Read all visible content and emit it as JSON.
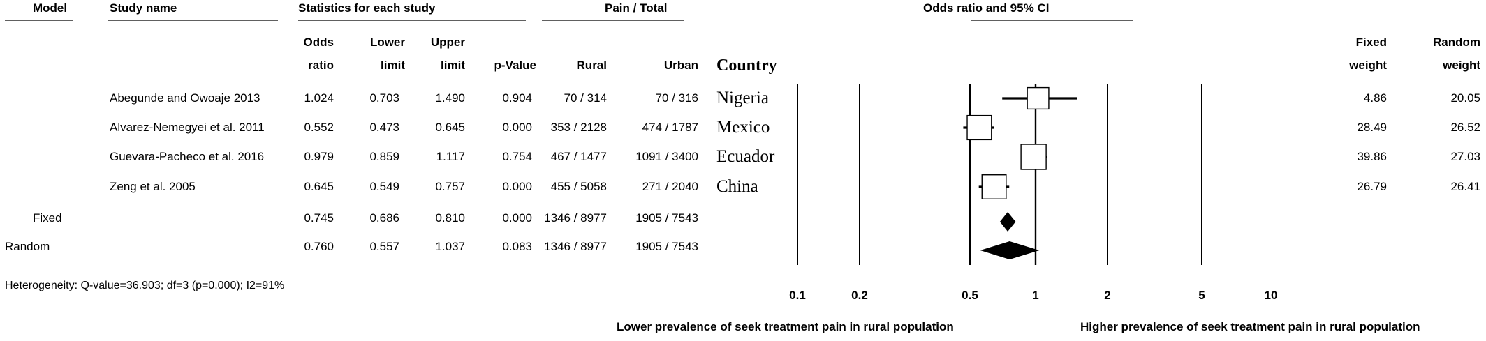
{
  "headers": {
    "model": "Model",
    "study": "Study name",
    "stats_group": "Statistics for each study",
    "pain_group": "Pain / Total",
    "or_group": "Odds ratio and 95% CI",
    "odds_line1": "Odds",
    "odds_line2": "ratio",
    "lower_line1": "Lower",
    "lower_line2": "limit",
    "upper_line1": "Upper",
    "upper_line2": "limit",
    "pvalue": "p-Value",
    "rural": "Rural",
    "urban": "Urban",
    "country": "Country",
    "fixed_w_line1": "Fixed",
    "fixed_w_line2": "weight",
    "random_w_line1": "Random",
    "random_w_line2": "weight"
  },
  "studies": [
    {
      "name": "Abegunde and Owoaje 2013",
      "odds": "1.024",
      "lower": "0.703",
      "upper": "1.490",
      "p": "0.904",
      "rural": "70 / 314",
      "urban": "70 / 316",
      "country": "Nigeria",
      "fixed_w": "4.86",
      "random_w": "20.05"
    },
    {
      "name": "Alvarez-Nemegyei et al. 2011",
      "odds": "0.552",
      "lower": "0.473",
      "upper": "0.645",
      "p": "0.000",
      "rural": "353 / 2128",
      "urban": "474 / 1787",
      "country": "Mexico",
      "fixed_w": "28.49",
      "random_w": "26.52"
    },
    {
      "name": "Guevara-Pacheco et al. 2016",
      "odds": "0.979",
      "lower": "0.859",
      "upper": "1.117",
      "p": "0.754",
      "rural": "467 / 1477",
      "urban": "1091 / 3400",
      "country": "Ecuador",
      "fixed_w": "39.86",
      "random_w": "27.03"
    },
    {
      "name": "Zeng et al. 2005",
      "odds": "0.645",
      "lower": "0.549",
      "upper": "0.757",
      "p": "0.000",
      "rural": "455 / 5058",
      "urban": "271 / 2040",
      "country": "China",
      "fixed_w": "26.79",
      "random_w": "26.41"
    }
  ],
  "pooled": [
    {
      "model": "Fixed",
      "odds": "0.745",
      "lower": "0.686",
      "upper": "0.810",
      "p": "0.000",
      "rural": "1346 / 8977",
      "urban": "1905 / 7543"
    },
    {
      "model": "Random",
      "odds": "0.760",
      "lower": "0.557",
      "upper": "1.037",
      "p": "0.083",
      "rural": "1346 / 8977",
      "urban": "1905 / 7543"
    }
  ],
  "heterogeneity": "Heterogeneity: Q-value=36.903; df=3 (p=0.000); I2=91%",
  "axis": {
    "ticks": [
      0.1,
      0.2,
      0.5,
      1,
      2,
      5,
      10
    ],
    "tick_labels": [
      "0.1",
      "0.2",
      "0.5",
      "1",
      "2",
      "5",
      "10"
    ],
    "scale": "log",
    "range": [
      0.1,
      10
    ],
    "left_label": "Lower prevalence of seek treatment pain in rural population",
    "right_label": "Higher prevalence of seek treatment pain in rural population"
  },
  "chart_data": {
    "type": "forest",
    "xscale": "log",
    "xlim": [
      0.1,
      10
    ],
    "categories": [
      "Abegunde and Owoaje 2013",
      "Alvarez-Nemegyei et al. 2011",
      "Guevara-Pacheco et al. 2016",
      "Zeng et al. 2005",
      "Fixed",
      "Random"
    ],
    "series": [
      {
        "values": [
          1.024,
          0.552,
          0.979,
          0.645,
          0.745,
          0.76
        ],
        "lower": [
          0.703,
          0.473,
          0.859,
          0.549,
          0.686,
          0.557
        ],
        "upper": [
          1.49,
          0.645,
          1.117,
          0.757,
          0.81,
          1.037
        ]
      }
    ],
    "weights_fixed": [
      4.86,
      28.49,
      39.86,
      26.79
    ],
    "weights_random": [
      20.05,
      26.52,
      27.03,
      26.41
    ]
  }
}
